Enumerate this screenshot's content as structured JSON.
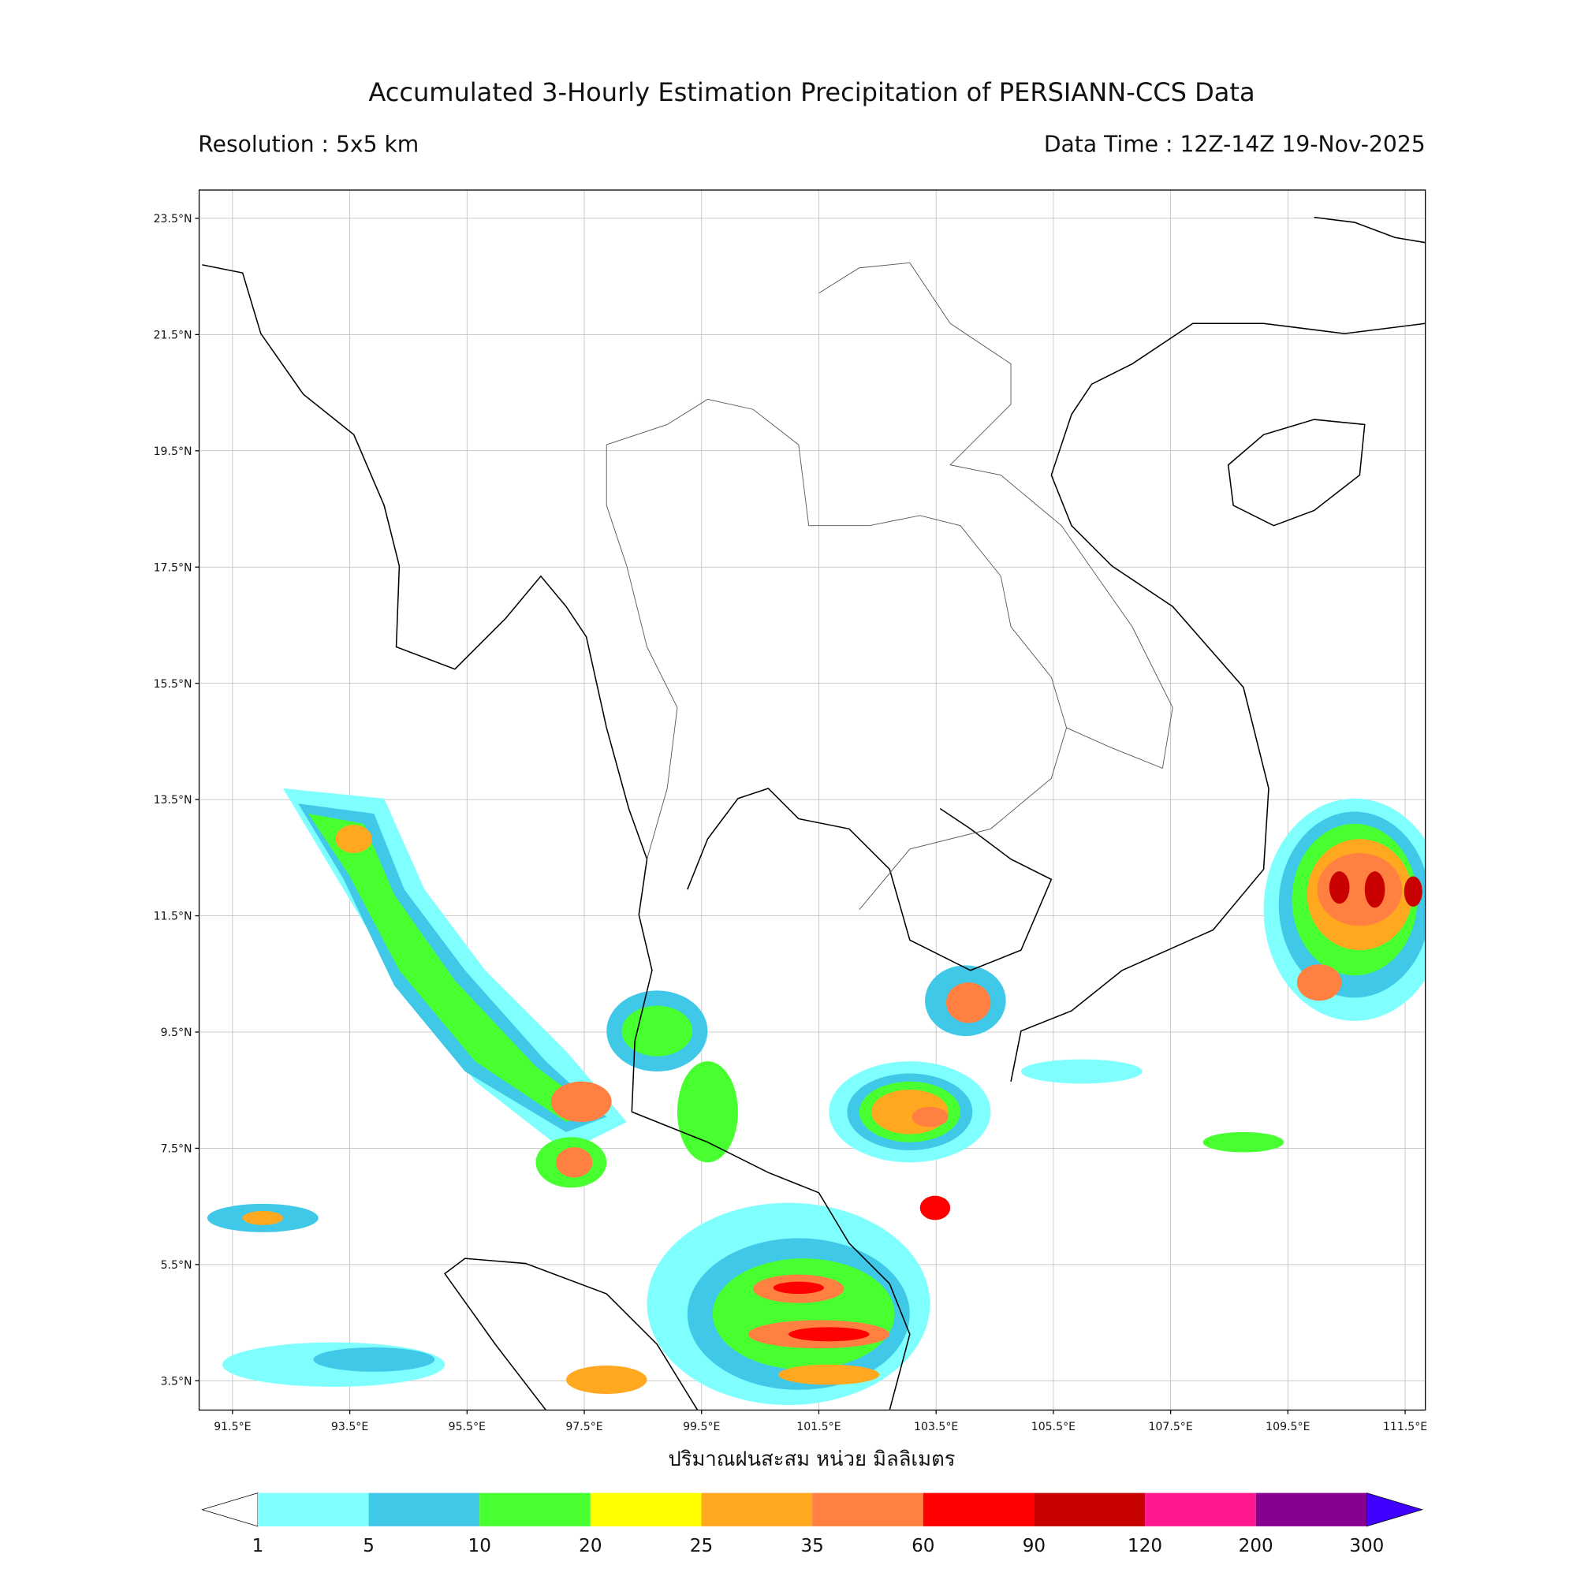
{
  "header": {
    "title": "Accumulated 3-Hourly Estimation Precipitation of PERSIANN-CCS Data",
    "resolution": "Resolution : 5x5 km",
    "data_time": "Data Time : 12Z-14Z 19-Nov-2025"
  },
  "map": {
    "lat_ticks": [
      {
        "value": 23.5,
        "label": "23.5°N"
      },
      {
        "value": 21.5,
        "label": "21.5°N"
      },
      {
        "value": 19.5,
        "label": "19.5°N"
      },
      {
        "value": 17.5,
        "label": "17.5°N"
      },
      {
        "value": 15.5,
        "label": "15.5°N"
      },
      {
        "value": 13.5,
        "label": "13.5°N"
      },
      {
        "value": 11.5,
        "label": "11.5°N"
      },
      {
        "value": 9.5,
        "label": "9.5°N"
      },
      {
        "value": 7.5,
        "label": "7.5°N"
      },
      {
        "value": 5.5,
        "label": "5.5°N"
      },
      {
        "value": 3.5,
        "label": "3.5°N"
      }
    ],
    "lon_ticks": [
      {
        "value": 91.5,
        "label": "91.5°E"
      },
      {
        "value": 93.5,
        "label": "93.5°E"
      },
      {
        "value": 95.5,
        "label": "95.5°E"
      },
      {
        "value": 97.5,
        "label": "97.5°E"
      },
      {
        "value": 99.5,
        "label": "99.5°E"
      },
      {
        "value": 101.5,
        "label": "101.5°E"
      },
      {
        "value": 103.5,
        "label": "103.5°E"
      },
      {
        "value": 105.5,
        "label": "105.5°E"
      },
      {
        "value": 107.5,
        "label": "107.5°E"
      },
      {
        "value": 109.5,
        "label": "109.5°E"
      },
      {
        "value": 111.5,
        "label": "111.5°E"
      }
    ],
    "xlabel": "ปริมาณฝนสะสม หน่วย มิลลิเมตร"
  },
  "colorbar": {
    "ticks": [
      1,
      5,
      10,
      20,
      25,
      35,
      60,
      90,
      120,
      200,
      300
    ],
    "colors": [
      "#80ffff",
      "#40c8e8",
      "#48ff30",
      "#ffff00",
      "#ffa820",
      "#ff8040",
      "#ff0000",
      "#c80000",
      "#ff1890",
      "#880090"
    ],
    "under_color": "#ffffff",
    "over_color": "#4000ff"
  }
}
